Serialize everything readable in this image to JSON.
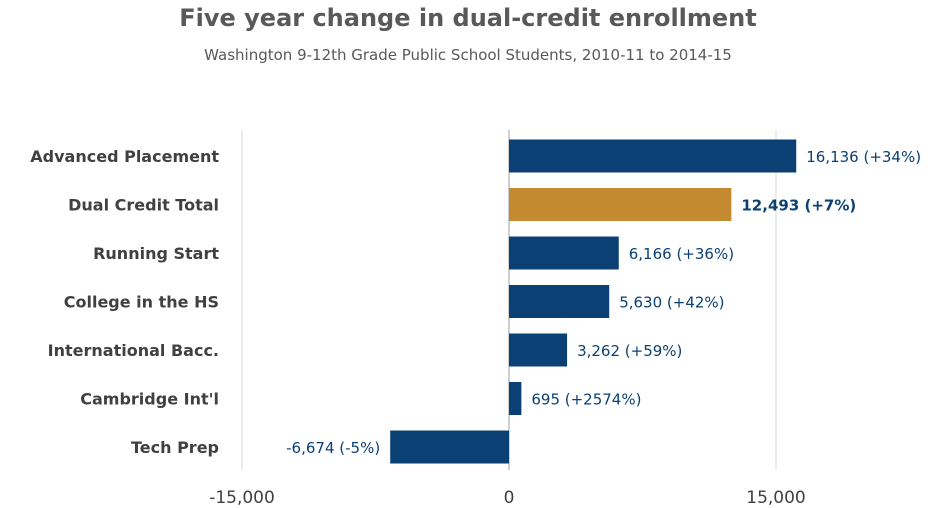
{
  "chart_data": {
    "type": "bar",
    "orientation": "horizontal",
    "title": "Five year change in dual-credit enrollment",
    "subtitle": "Washington 9-12th Grade Public School Students, 2010-11 to 2014-15",
    "categories": [
      "Advanced Placement",
      "Dual Credit Total",
      "Running Start",
      "College in the HS",
      "International Bacc.",
      "Cambridge Int'l",
      "Tech Prep"
    ],
    "values": [
      16136,
      12493,
      6166,
      5630,
      3262,
      695,
      -6674
    ],
    "data_labels": [
      "16,136 (+34%)",
      "12,493 (+7%)",
      "6,166 (+36%)",
      "5,630 (+42%)",
      "3,262 (+59%)",
      "695 (+2574%)",
      "-6,674 (-5%)"
    ],
    "highlight_category": "Dual Credit Total",
    "xlim": [
      -15000,
      15000
    ],
    "xticks": [
      -15000,
      0,
      15000
    ],
    "xtick_labels": [
      "-15,000",
      "0",
      "15,000"
    ],
    "grid": true,
    "colors": {
      "bar": "#0b4074",
      "highlight": "#c48a2f",
      "label": "#0b4074",
      "axis": "#d9d9d9"
    }
  }
}
